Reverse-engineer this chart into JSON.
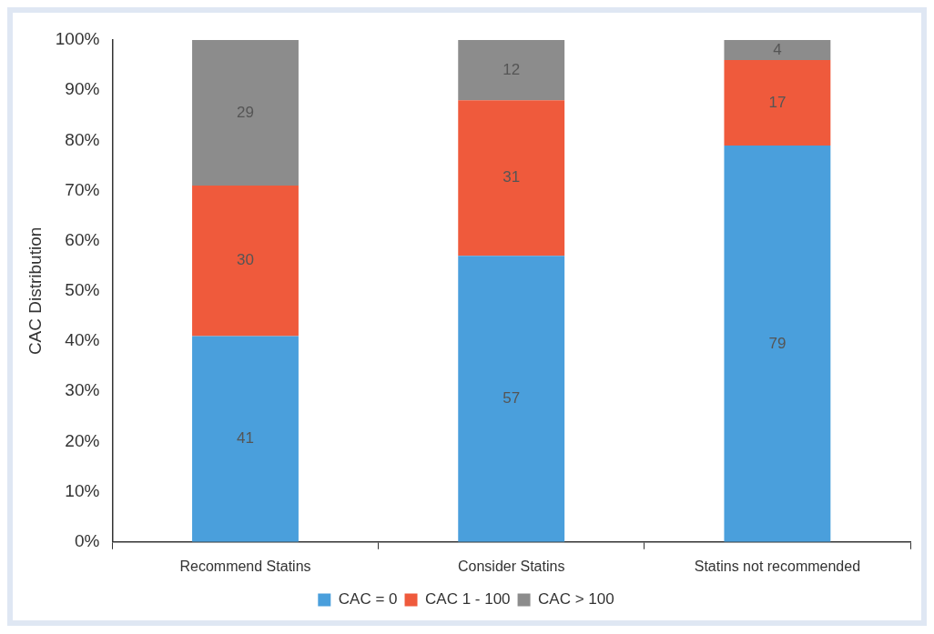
{
  "chart_data": {
    "type": "bar",
    "stacked": true,
    "ylabel": "CAC Distribution",
    "categories": [
      "Recommend Statins",
      "Consider Statins",
      "Statins not recommended"
    ],
    "series": [
      {
        "name": "CAC = 0",
        "color": "#4a9fdc",
        "values": [
          41,
          57,
          79
        ]
      },
      {
        "name": "CAC 1 - 100",
        "color": "#ef5a3c",
        "values": [
          30,
          31,
          17
        ]
      },
      {
        "name": "CAC > 100",
        "color": "#8c8c8c",
        "values": [
          29,
          12,
          4
        ]
      }
    ],
    "ylim": [
      0,
      100
    ],
    "yticks": [
      {
        "value": 0,
        "label": "0%"
      },
      {
        "value": 10,
        "label": "10%"
      },
      {
        "value": 20,
        "label": "20%"
      },
      {
        "value": 30,
        "label": "30%"
      },
      {
        "value": 40,
        "label": "40%"
      },
      {
        "value": 50,
        "label": "50%"
      },
      {
        "value": 60,
        "label": "60%"
      },
      {
        "value": 70,
        "label": "70%"
      },
      {
        "value": 80,
        "label": "80%"
      },
      {
        "value": 90,
        "label": "90%"
      },
      {
        "value": 100,
        "label": "100%"
      }
    ],
    "data_labels": true,
    "grid": false,
    "legend": "bottom"
  }
}
